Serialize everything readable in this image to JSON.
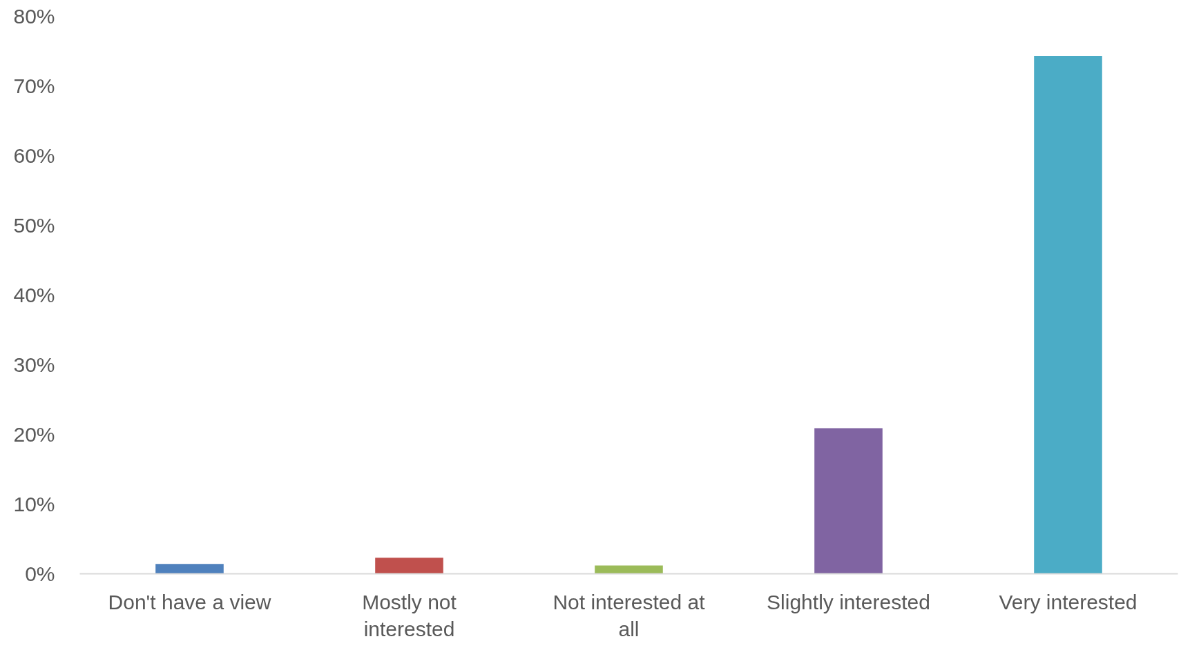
{
  "chart_data": {
    "type": "bar",
    "categories": [
      "Don't have a view",
      "Mostly not interested",
      "Not interested at all",
      "Slightly interested",
      "Very interested"
    ],
    "values": [
      1.4,
      2.3,
      1.2,
      20.9,
      74.3
    ],
    "colors": [
      "#4f81bd",
      "#c0504d",
      "#9bbb59",
      "#8064a2",
      "#4bacc6"
    ],
    "ylim": [
      0,
      80
    ],
    "yticks": [
      {
        "value": 0,
        "label": "0%"
      },
      {
        "value": 10,
        "label": "10%"
      },
      {
        "value": 20,
        "label": "20%"
      },
      {
        "value": 30,
        "label": "30%"
      },
      {
        "value": 40,
        "label": "40%"
      },
      {
        "value": 50,
        "label": "50%"
      },
      {
        "value": 60,
        "label": "60%"
      },
      {
        "value": 70,
        "label": "70%"
      },
      {
        "value": 80,
        "label": "80%"
      }
    ],
    "grid": false
  }
}
